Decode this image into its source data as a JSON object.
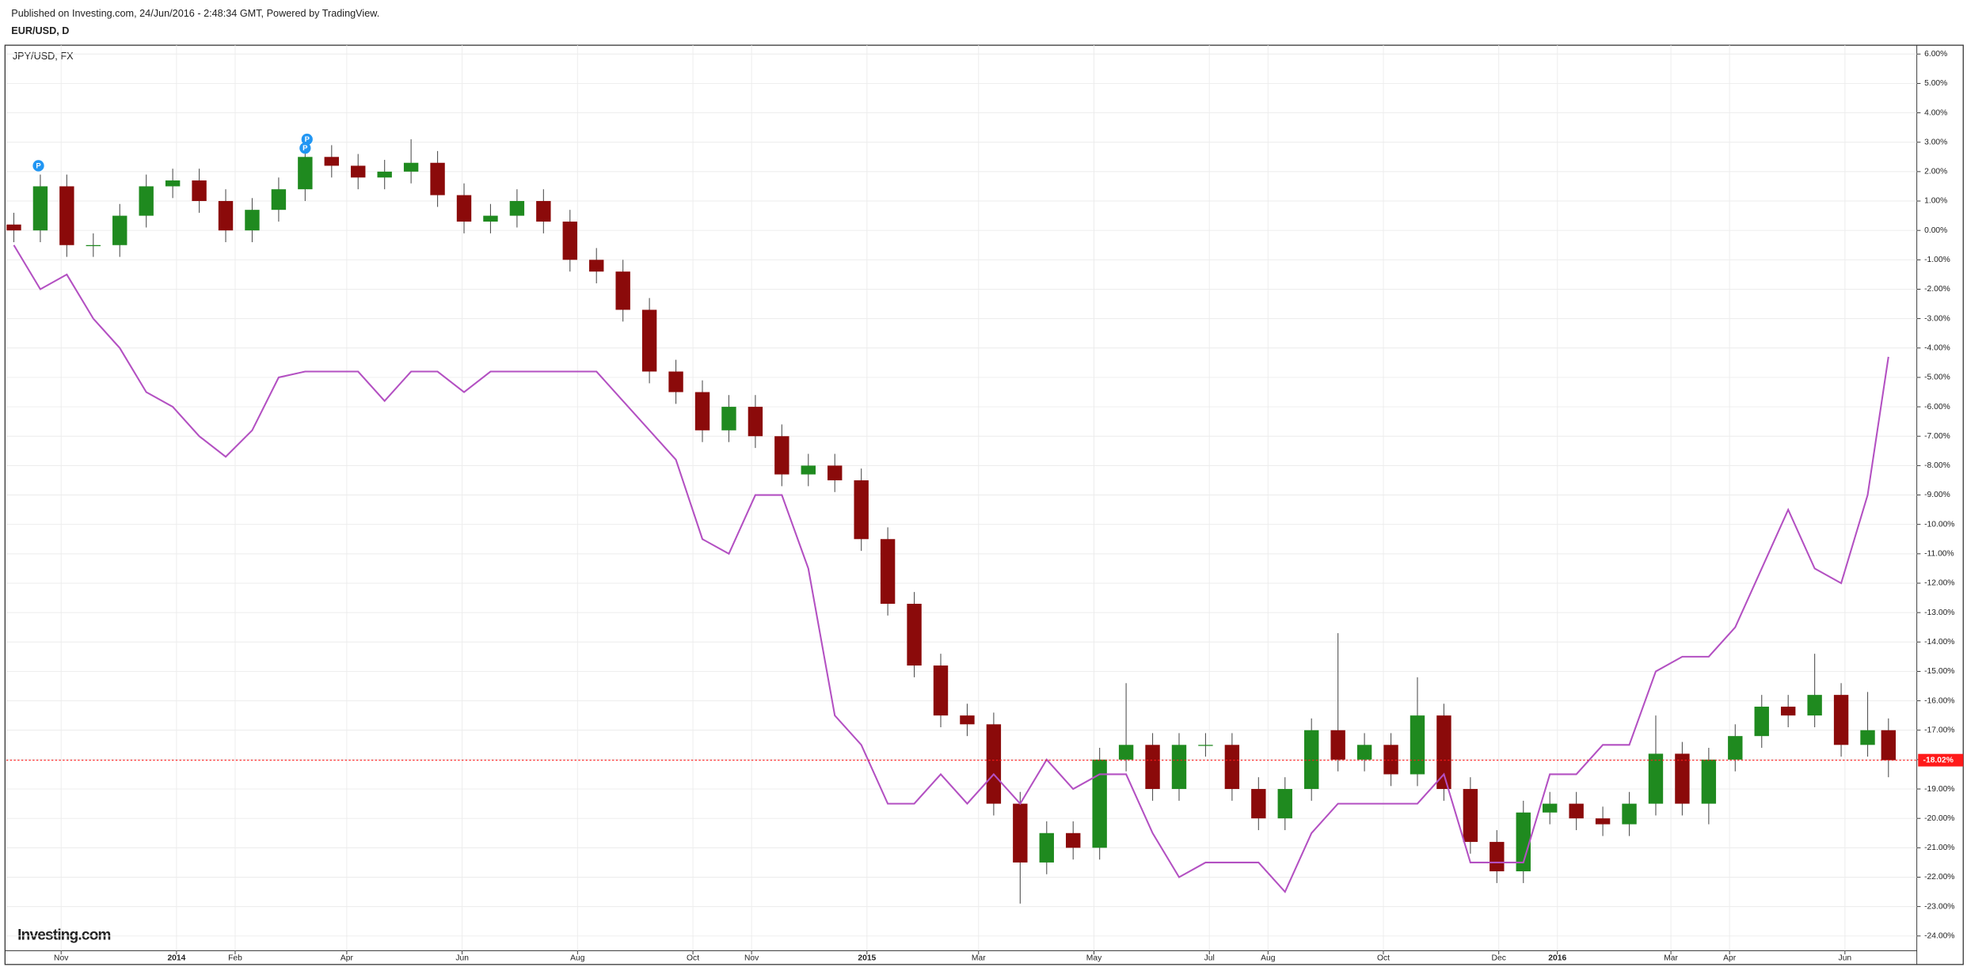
{
  "chart_data": {
    "type": "candlestick",
    "header": "Published on Investing.com, 24/Jun/2016 - 2:48:34 GMT, Powered by TradingView.",
    "title": "EUR/USD, D",
    "logo": "Investing.com",
    "x": [
      -25,
      -11,
      3,
      17,
      31,
      45,
      59,
      73,
      87,
      101,
      115,
      129,
      143,
      157,
      171,
      185,
      199,
      213,
      227,
      241,
      255,
      269,
      283,
      297,
      311,
      325,
      339,
      353,
      367,
      381,
      395,
      409,
      423,
      437,
      451,
      465,
      479,
      493,
      507,
      521,
      535,
      549,
      563,
      577,
      591,
      605,
      619,
      633,
      647,
      661,
      675,
      689,
      703,
      717,
      731,
      745,
      759,
      773,
      787,
      801,
      815,
      829,
      843,
      857,
      871,
      885,
      899,
      913,
      927,
      941,
      955,
      966
    ],
    "open": [
      0.2,
      0,
      1.5,
      -0.5,
      -0.5,
      0.5,
      1.5,
      1.7,
      1.0,
      0,
      0.7,
      1.4,
      2.5,
      2.2,
      1.8,
      2.0,
      2.3,
      1.2,
      0.3,
      0.5,
      1.0,
      0.3,
      -1.0,
      -1.4,
      -2.7,
      -4.8,
      -5.5,
      -6.8,
      -6.0,
      -7.0,
      -8.3,
      -8.0,
      -8.5,
      -10.5,
      -12.7,
      -14.8,
      -16.5,
      -16.8,
      -19.5,
      -21.5,
      -20.5,
      -21.0,
      -18.0,
      -17.5,
      -19.0,
      -17.5,
      -17.5,
      -19.0,
      -20.0,
      -19.0,
      -17.0,
      -18.0,
      -17.5,
      -18.5,
      -16.5,
      -19.0,
      -20.8,
      -21.8,
      -19.8,
      -19.5,
      -20.0,
      -20.2,
      -19.5,
      -17.8,
      -19.5,
      -18.0,
      -17.2,
      -16.2,
      -16.5,
      -15.8,
      -17.5,
      -17.0
    ],
    "high": [
      0.6,
      1.9,
      1.9,
      -0.1,
      0.9,
      1.9,
      2.1,
      2.1,
      1.4,
      1.1,
      1.8,
      2.9,
      2.9,
      2.6,
      2.4,
      3.1,
      2.7,
      1.6,
      0.9,
      1.4,
      1.4,
      0.7,
      -0.6,
      -1.0,
      -2.3,
      -4.4,
      -5.1,
      -5.6,
      -5.6,
      -6.6,
      -7.6,
      -7.6,
      -8.1,
      -10.1,
      -12.3,
      -14.4,
      -16.1,
      -16.4,
      -19.1,
      -20.1,
      -20.1,
      -17.6,
      -15.4,
      -17.1,
      -17.1,
      -17.1,
      -17.1,
      -18.6,
      -18.6,
      -16.6,
      -13.7,
      -17.1,
      -17.1,
      -15.2,
      -16.1,
      -18.6,
      -20.4,
      -19.4,
      -19.1,
      -19.1,
      -19.6,
      -19.1,
      -16.5,
      -17.4,
      -17.6,
      -16.8,
      -15.8,
      -15.8,
      -14.4,
      -15.4,
      -15.7,
      -16.6
    ],
    "low": [
      -0.4,
      -0.4,
      -0.9,
      -0.9,
      -0.9,
      0.1,
      1.1,
      0.6,
      -0.4,
      -0.4,
      0.3,
      1.0,
      1.8,
      1.4,
      1.4,
      1.6,
      0.8,
      -0.1,
      -0.1,
      0.1,
      -0.1,
      -1.4,
      -1.8,
      -3.1,
      -5.2,
      -5.9,
      -7.2,
      -7.2,
      -7.4,
      -8.7,
      -8.7,
      -8.9,
      -10.9,
      -13.1,
      -15.2,
      -16.9,
      -17.2,
      -19.9,
      -22.9,
      -21.9,
      -21.4,
      -21.4,
      -18.4,
      -19.4,
      -19.4,
      -17.9,
      -19.4,
      -20.4,
      -20.4,
      -19.4,
      -18.4,
      -18.4,
      -18.9,
      -18.9,
      -19.4,
      -21.2,
      -22.2,
      -22.2,
      -20.2,
      -20.4,
      -20.6,
      -20.6,
      -19.9,
      -19.9,
      -20.2,
      -18.4,
      -17.6,
      -16.9,
      -16.9,
      -17.9,
      -17.9,
      -18.6
    ],
    "close": [
      0,
      1.5,
      -0.5,
      -0.5,
      0.5,
      1.5,
      1.7,
      1.0,
      0,
      0.7,
      1.4,
      2.5,
      2.2,
      1.8,
      2.0,
      2.3,
      1.2,
      0.3,
      0.5,
      1.0,
      0.3,
      -1.0,
      -1.4,
      -2.7,
      -4.8,
      -5.5,
      -6.8,
      -6.0,
      -7.0,
      -8.3,
      -8.0,
      -8.5,
      -10.5,
      -12.7,
      -14.8,
      -16.5,
      -16.8,
      -19.5,
      -21.5,
      -20.5,
      -21.0,
      -18.0,
      -17.5,
      -19.0,
      -17.5,
      -17.5,
      -19.0,
      -20.0,
      -19.0,
      -17.0,
      -18.0,
      -17.5,
      -18.5,
      -16.5,
      -19.0,
      -20.8,
      -21.8,
      -19.8,
      -19.5,
      -20.0,
      -20.2,
      -19.5,
      -17.8,
      -19.5,
      -18.0,
      -17.2,
      -16.2,
      -16.5,
      -15.8,
      -17.5,
      -17.0,
      -18.02
    ],
    "up_color": "#1f8a1f",
    "down_color": "#8b0a0a",
    "overlay": {
      "type": "line",
      "name": "JPY/USD, FX",
      "color": "#b350c2",
      "values": [
        -0.5,
        -2.0,
        -1.5,
        -3.0,
        -4.0,
        -5.5,
        -6.0,
        -7.0,
        -7.7,
        -6.8,
        -5.0,
        -4.8,
        -4.8,
        -4.8,
        -5.8,
        -4.8,
        -4.8,
        -5.5,
        -4.8,
        -4.8,
        -4.8,
        -4.8,
        -4.8,
        -5.8,
        -6.8,
        -7.8,
        -10.5,
        -11.0,
        -9.0,
        -9.0,
        -11.5,
        -16.5,
        -17.5,
        -19.5,
        -19.5,
        -18.5,
        -19.5,
        -18.5,
        -19.5,
        -18.0,
        -19.0,
        -18.5,
        -18.5,
        -20.5,
        -22.0,
        -21.5,
        -21.5,
        -21.5,
        -22.5,
        -20.5,
        -19.5,
        -19.5,
        -19.5,
        -19.5,
        -18.5,
        -21.5,
        -21.5,
        -21.5,
        -18.5,
        -18.5,
        -17.5,
        -17.5,
        -15.0,
        -14.5,
        -14.5,
        -13.5,
        -11.5,
        -9.5,
        -11.5,
        -12.0,
        -9.0,
        -4.3
      ]
    },
    "last": {
      "value": -18.02,
      "label": "-18.02%",
      "color": "#ff1a1a"
    },
    "annotations": [
      {
        "x": -12,
        "y": 2.2,
        "label": "P"
      },
      {
        "x": 130,
        "y": 3.1,
        "label": "P"
      },
      {
        "x": 129,
        "y": 2.8,
        "label": "P"
      }
    ],
    "annotation_color": "#2196f3",
    "grid": true,
    "xlim": [
      -29,
      981
    ],
    "ylim": [
      -24.5,
      6.3
    ],
    "xticks": [
      {
        "value": 0,
        "label": "Nov"
      },
      {
        "value": 61,
        "label": "2014"
      },
      {
        "value": 92,
        "label": "Feb"
      },
      {
        "value": 151,
        "label": "Apr"
      },
      {
        "value": 212,
        "label": "Jun"
      },
      {
        "value": 273,
        "label": "Aug"
      },
      {
        "value": 334,
        "label": "Oct"
      },
      {
        "value": 365,
        "label": "Nov"
      },
      {
        "value": 426,
        "label": "2015"
      },
      {
        "value": 485,
        "label": "Mar"
      },
      {
        "value": 546,
        "label": "May"
      },
      {
        "value": 607,
        "label": "Jul"
      },
      {
        "value": 638,
        "label": "Aug"
      },
      {
        "value": 699,
        "label": "Oct"
      },
      {
        "value": 760,
        "label": "Dec"
      },
      {
        "value": 791,
        "label": "2016"
      },
      {
        "value": 851,
        "label": "Mar"
      },
      {
        "value": 882,
        "label": "Apr"
      },
      {
        "value": 943,
        "label": "Jun"
      }
    ],
    "yticks": [
      {
        "value": 6,
        "label": "6.00%"
      },
      {
        "value": 5,
        "label": "5.00%"
      },
      {
        "value": 4,
        "label": "4.00%"
      },
      {
        "value": 3,
        "label": "3.00%"
      },
      {
        "value": 2,
        "label": "2.00%"
      },
      {
        "value": 1,
        "label": "1.00%"
      },
      {
        "value": 0,
        "label": "0.00%"
      },
      {
        "value": -1,
        "label": "-1.00%"
      },
      {
        "value": -2,
        "label": "-2.00%"
      },
      {
        "value": -3,
        "label": "-3.00%"
      },
      {
        "value": -4,
        "label": "-4.00%"
      },
      {
        "value": -5,
        "label": "-5.00%"
      },
      {
        "value": -6,
        "label": "-6.00%"
      },
      {
        "value": -7,
        "label": "-7.00%"
      },
      {
        "value": -8,
        "label": "-8.00%"
      },
      {
        "value": -9,
        "label": "-9.00%"
      },
      {
        "value": -10,
        "label": "-10.00%"
      },
      {
        "value": -11,
        "label": "-11.00%"
      },
      {
        "value": -12,
        "label": "-12.00%"
      },
      {
        "value": -13,
        "label": "-13.00%"
      },
      {
        "value": -14,
        "label": "-14.00%"
      },
      {
        "value": -15,
        "label": "-15.00%"
      },
      {
        "value": -16,
        "label": "-16.00%"
      },
      {
        "value": -17,
        "label": "-17.00%"
      },
      {
        "value": -18,
        "label": "-18.00%"
      },
      {
        "value": -19,
        "label": "-19.00%"
      },
      {
        "value": -20,
        "label": "-20.00%"
      },
      {
        "value": -21,
        "label": "-21.00%"
      },
      {
        "value": -22,
        "label": "-22.00%"
      },
      {
        "value": -23,
        "label": "-23.00%"
      },
      {
        "value": -24,
        "label": "-24.00%"
      }
    ]
  }
}
